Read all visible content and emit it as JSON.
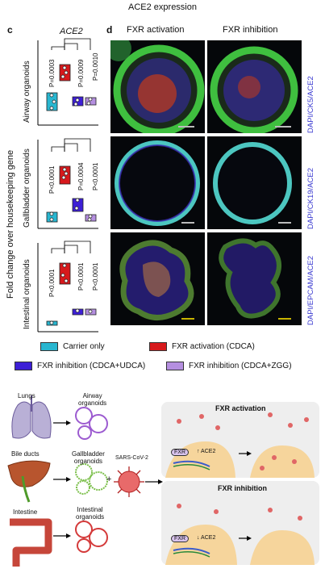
{
  "figure_title": "ACE2 expression",
  "panel_c": {
    "label": "c",
    "gene": "ACE2",
    "y_axis_label": "Fold change over housekeeping gene",
    "groups": [
      "Carrier only",
      "FXR activation (CDCA)",
      "FXR inhibition (CDCA+UDCA)",
      "FXR inhibition (CDCA+ZGG)"
    ],
    "colors": [
      "#29b6d0",
      "#d7191c",
      "#3d1fd6",
      "#b58fe0"
    ],
    "subplots": [
      {
        "name": "Airway organoids",
        "pvalues": [
          "P=0.0003",
          "P=0.0009",
          "P=0.0010"
        ]
      },
      {
        "name": "Gallbladder organoids",
        "pvalues": [
          "P<0.0001",
          "P=0.0004",
          "P<0.0001"
        ]
      },
      {
        "name": "Intestinal organoids",
        "pvalues": [
          "P<0.0001",
          "P<0.0001",
          "P<0.0001"
        ]
      }
    ]
  },
  "chart_data": [
    {
      "type": "box",
      "title": "Airway organoids",
      "categories": [
        "Carrier only",
        "FXR activation (CDCA)",
        "FXR inhibition (CDCA+UDCA)",
        "FXR inhibition (CDCA+ZGG)"
      ],
      "values": [
        0.3,
        0.7,
        0.36,
        0.36
      ],
      "ylim": [
        0,
        1
      ]
    },
    {
      "type": "box",
      "title": "Gallbladder organoids",
      "categories": [
        "Carrier only",
        "FXR activation (CDCA)",
        "FXR inhibition (CDCA+UDCA)",
        "FXR inhibition (CDCA+ZGG)"
      ],
      "values": [
        0.22,
        0.8,
        0.42,
        0.22
      ],
      "ylim": [
        0,
        1
      ]
    },
    {
      "type": "box",
      "title": "Intestinal organoids",
      "categories": [
        "Carrier only",
        "FXR activation (CDCA)",
        "FXR inhibition (CDCA+UDCA)",
        "FXR inhibition (CDCA+ZGG)"
      ],
      "values": [
        0.12,
        0.82,
        0.3,
        0.3
      ],
      "ylim": [
        0,
        1
      ]
    }
  ],
  "panel_d": {
    "label": "d",
    "columns": [
      "FXR activation",
      "FXR inhibition"
    ],
    "rows": [
      {
        "stain": "DAPI/CK5/ACE2",
        "bar_color": "#bbbbbb"
      },
      {
        "stain": "DAPI/CK19/ACE2",
        "bar_color": "#bbbbbb"
      },
      {
        "stain": "DAPI/EPCAM/ACE2",
        "bar_color": "#c8b400"
      }
    ]
  },
  "legend": [
    {
      "label": "Carrier only",
      "color": "#29b6d0"
    },
    {
      "label": "FXR activation (CDCA)",
      "color": "#d7191c"
    },
    {
      "label": "FXR inhibition (CDCA+UDCA)",
      "color": "#3d1fd6"
    },
    {
      "label": "FXR inhibition (CDCA+ZGG)",
      "color": "#b58fe0"
    }
  ],
  "schematic": {
    "organs": [
      {
        "organ": "Lungs",
        "organoid_line1": "Airway",
        "organoid_line2": "organoids",
        "color": "#9c5bd0"
      },
      {
        "organ": "Bile ducts",
        "organoid_line1": "Gallbladder",
        "organoid_line2": "organoids",
        "color": "#7bbf4a"
      },
      {
        "organ": "Intestine",
        "organoid_line1": "Intestinal",
        "organoid_line2": "organoids",
        "color": "#d43a3a"
      }
    ],
    "plus": "+",
    "virus_label": "SARS-CoV-2",
    "activation_title": "FXR activation",
    "inhibition_title": "FXR inhibition",
    "fxr_label": "FXR",
    "ace2_up": "↑ ACE2",
    "ace2_down": "↓ ACE2"
  }
}
